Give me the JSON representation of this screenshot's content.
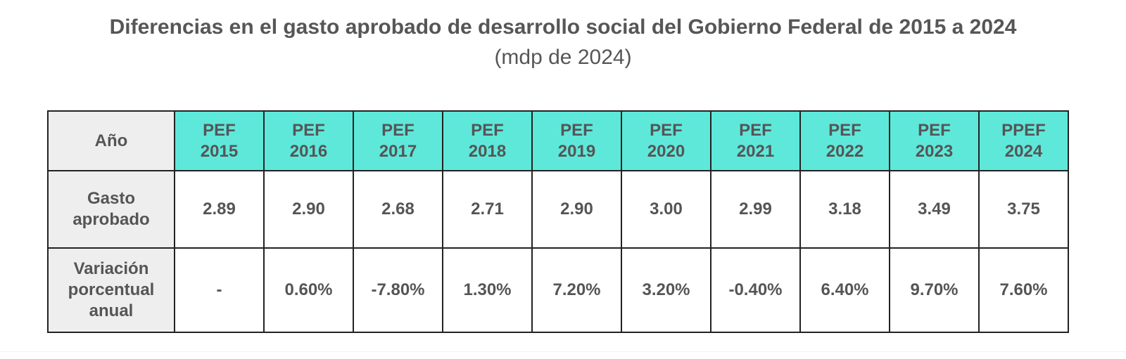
{
  "title": "Diferencias en el gasto aprobado de desarrollo social del Gobierno Federal de 2015 a 2024",
  "subtitle": "(mdp de 2024)",
  "colors": {
    "header_fill": "#5ee8da",
    "row_header_fill": "#eeeeee",
    "text": "#555555",
    "border": "#222222"
  },
  "table": {
    "row_headers": {
      "year": "Año",
      "gasto": "Gasto aprobado",
      "variacion": "Variación porcentual anual"
    },
    "years": [
      {
        "line1": "PEF",
        "line2": "2015"
      },
      {
        "line1": "PEF",
        "line2": "2016"
      },
      {
        "line1": "PEF",
        "line2": "2017"
      },
      {
        "line1": "PEF",
        "line2": "2018"
      },
      {
        "line1": "PEF",
        "line2": "2019"
      },
      {
        "line1": "PEF",
        "line2": "2020"
      },
      {
        "line1": "PEF",
        "line2": "2021"
      },
      {
        "line1": "PEF",
        "line2": "2022"
      },
      {
        "line1": "PEF",
        "line2": "2023"
      },
      {
        "line1": "PPEF",
        "line2": "2024"
      }
    ],
    "gasto_aprobado": [
      "2.89",
      "2.90",
      "2.68",
      "2.71",
      "2.90",
      "3.00",
      "2.99",
      "3.18",
      "3.49",
      "3.75"
    ],
    "variacion_porcentual": [
      "-",
      "0.60%",
      "-7.80%",
      "1.30%",
      "7.20%",
      "3.20%",
      "-0.40%",
      "6.40%",
      "9.70%",
      "7.60%"
    ]
  }
}
